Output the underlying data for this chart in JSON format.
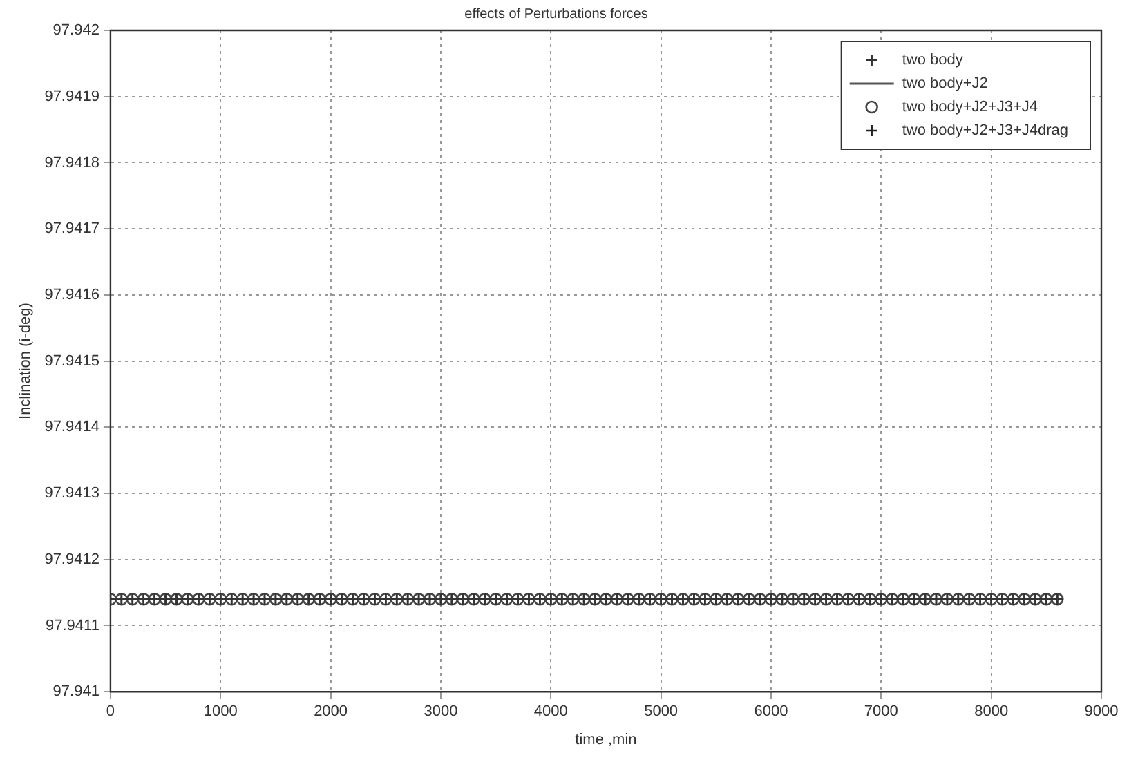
{
  "chart_data": {
    "type": "line",
    "title": "effects of Perturbations forces",
    "xlabel": "time ,min",
    "ylabel": "Inclination (i-deg)",
    "x": [
      0,
      100,
      200,
      300,
      400,
      500,
      600,
      700,
      800,
      900,
      1000,
      1100,
      1200,
      1300,
      1400,
      1500,
      1600,
      1700,
      1800,
      1900,
      2000,
      2100,
      2200,
      2300,
      2400,
      2500,
      2600,
      2700,
      2800,
      2900,
      3000,
      3100,
      3200,
      3300,
      3400,
      3500,
      3600,
      3700,
      3800,
      3900,
      4000,
      4100,
      4200,
      4300,
      4400,
      4500,
      4600,
      4700,
      4800,
      4900,
      5000,
      5100,
      5200,
      5300,
      5400,
      5500,
      5600,
      5700,
      5800,
      5900,
      6000,
      6100,
      6200,
      6300,
      6400,
      6500,
      6600,
      6700,
      6800,
      6900,
      7000,
      7100,
      7200,
      7300,
      7400,
      7500,
      7600,
      7700,
      7800,
      7900,
      8000,
      8100,
      8200,
      8300,
      8400,
      8500,
      8600
    ],
    "series": [
      {
        "name": "two body",
        "type": "scatter",
        "marker": "cross",
        "color": "#333333",
        "values": [
          97.94114,
          97.94114,
          97.94114,
          97.94114,
          97.94114,
          97.94114,
          97.94114,
          97.94114,
          97.94114,
          97.94114,
          97.94114,
          97.94114,
          97.94114,
          97.94114,
          97.94114,
          97.94114,
          97.94114,
          97.94114,
          97.94114,
          97.94114,
          97.94114,
          97.94114,
          97.94114,
          97.94114,
          97.94114,
          97.94114,
          97.94114,
          97.94114,
          97.94114,
          97.94114,
          97.94114,
          97.94114,
          97.94114,
          97.94114,
          97.94114,
          97.94114,
          97.94114,
          97.94114,
          97.94114,
          97.94114,
          97.94114,
          97.94114,
          97.94114,
          97.94114,
          97.94114,
          97.94114,
          97.94114,
          97.94114,
          97.94114,
          97.94114,
          97.94114,
          97.94114,
          97.94114,
          97.94114,
          97.94114,
          97.94114,
          97.94114,
          97.94114,
          97.94114,
          97.94114,
          97.94114,
          97.94114,
          97.94114,
          97.94114,
          97.94114,
          97.94114,
          97.94114,
          97.94114,
          97.94114,
          97.94114,
          97.94114,
          97.94114,
          97.94114,
          97.94114,
          97.94114,
          97.94114,
          97.94114,
          97.94114,
          97.94114,
          97.94114,
          97.94114,
          97.94114,
          97.94114,
          97.94114,
          97.94114,
          97.94114,
          97.94114
        ]
      },
      {
        "name": "two body+J2",
        "type": "line",
        "marker": "none",
        "line_style": "solid",
        "color": "#555555",
        "values": [
          97.94114,
          97.94114,
          97.94114,
          97.94114,
          97.94114,
          97.94114,
          97.94114,
          97.94114,
          97.94114,
          97.94114,
          97.94114,
          97.94114,
          97.94114,
          97.94114,
          97.94114,
          97.94114,
          97.94114,
          97.94114,
          97.94114,
          97.94114,
          97.94114,
          97.94114,
          97.94114,
          97.94114,
          97.94114,
          97.94114,
          97.94114,
          97.94114,
          97.94114,
          97.94114,
          97.94114,
          97.94114,
          97.94114,
          97.94114,
          97.94114,
          97.94114,
          97.94114,
          97.94114,
          97.94114,
          97.94114,
          97.94114,
          97.94114,
          97.94114,
          97.94114,
          97.94114,
          97.94114,
          97.94114,
          97.94114,
          97.94114,
          97.94114,
          97.94114,
          97.94114,
          97.94114,
          97.94114,
          97.94114,
          97.94114,
          97.94114,
          97.94114,
          97.94114,
          97.94114,
          97.94114,
          97.94114,
          97.94114,
          97.94114,
          97.94114,
          97.94114,
          97.94114,
          97.94114,
          97.94114,
          97.94114,
          97.94114,
          97.94114,
          97.94114,
          97.94114,
          97.94114,
          97.94114,
          97.94114,
          97.94114,
          97.94114,
          97.94114,
          97.94114,
          97.94114,
          97.94114,
          97.94114,
          97.94114,
          97.94114,
          97.94114
        ]
      },
      {
        "name": "two body+J2+J3+J4",
        "type": "scatter",
        "marker": "circle",
        "color": "#444444",
        "values": [
          97.94114,
          97.94114,
          97.94114,
          97.94114,
          97.94114,
          97.94114,
          97.94114,
          97.94114,
          97.94114,
          97.94114,
          97.94114,
          97.94114,
          97.94114,
          97.94114,
          97.94114,
          97.94114,
          97.94114,
          97.94114,
          97.94114,
          97.94114,
          97.94114,
          97.94114,
          97.94114,
          97.94114,
          97.94114,
          97.94114,
          97.94114,
          97.94114,
          97.94114,
          97.94114,
          97.94114,
          97.94114,
          97.94114,
          97.94114,
          97.94114,
          97.94114,
          97.94114,
          97.94114,
          97.94114,
          97.94114,
          97.94114,
          97.94114,
          97.94114,
          97.94114,
          97.94114,
          97.94114,
          97.94114,
          97.94114,
          97.94114,
          97.94114,
          97.94114,
          97.94114,
          97.94114,
          97.94114,
          97.94114,
          97.94114,
          97.94114,
          97.94114,
          97.94114,
          97.94114,
          97.94114,
          97.94114,
          97.94114,
          97.94114,
          97.94114,
          97.94114,
          97.94114,
          97.94114,
          97.94114,
          97.94114,
          97.94114,
          97.94114,
          97.94114,
          97.94114,
          97.94114,
          97.94114,
          97.94114,
          97.94114,
          97.94114,
          97.94114,
          97.94114,
          97.94114,
          97.94114,
          97.94114,
          97.94114,
          97.94114,
          97.94114
        ]
      },
      {
        "name": "two body+J2+J3+J4drag",
        "type": "scatter",
        "marker": "cross",
        "color": "#222222",
        "values": [
          97.94114,
          97.94114,
          97.94114,
          97.94114,
          97.94114,
          97.94114,
          97.94114,
          97.94114,
          97.94114,
          97.94114,
          97.94114,
          97.94114,
          97.94114,
          97.94114,
          97.94114,
          97.94114,
          97.94114,
          97.94114,
          97.94114,
          97.94114,
          97.94114,
          97.94114,
          97.94114,
          97.94114,
          97.94114,
          97.94114,
          97.94114,
          97.94114,
          97.94114,
          97.94114,
          97.94114,
          97.94114,
          97.94114,
          97.94114,
          97.94114,
          97.94114,
          97.94114,
          97.94114,
          97.94114,
          97.94114,
          97.94114,
          97.94114,
          97.94114,
          97.94114,
          97.94114,
          97.94114,
          97.94114,
          97.94114,
          97.94114,
          97.94114,
          97.94114,
          97.94114,
          97.94114,
          97.94114,
          97.94114,
          97.94114,
          97.94114,
          97.94114,
          97.94114,
          97.94114,
          97.94114,
          97.94114,
          97.94114,
          97.94114,
          97.94114,
          97.94114,
          97.94114,
          97.94114,
          97.94114,
          97.94114,
          97.94114,
          97.94114,
          97.94114,
          97.94114,
          97.94114,
          97.94114,
          97.94114,
          97.94114,
          97.94114,
          97.94114,
          97.94114,
          97.94114,
          97.94114,
          97.94114,
          97.94114,
          97.94114,
          97.94114
        ]
      }
    ],
    "xlim": [
      0,
      9000
    ],
    "xticks": [
      0,
      1000,
      2000,
      3000,
      4000,
      5000,
      6000,
      7000,
      8000,
      9000
    ],
    "ylim": [
      97.941,
      97.942
    ],
    "yticks": [
      97.941,
      97.9411,
      97.9412,
      97.9413,
      97.9414,
      97.9415,
      97.9416,
      97.9417,
      97.9418,
      97.9419,
      97.942
    ],
    "grid": true,
    "legend": "top right"
  }
}
